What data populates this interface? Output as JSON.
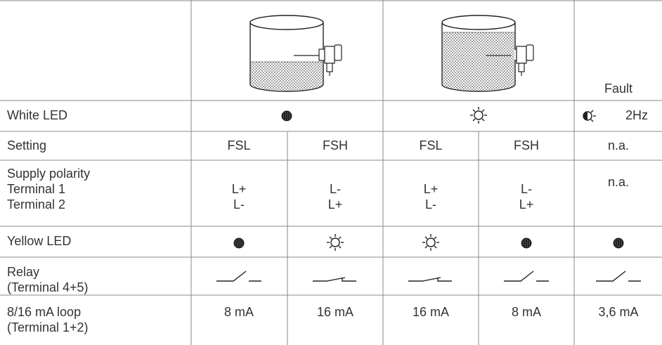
{
  "table": {
    "header": {
      "fault": "Fault"
    },
    "white_led": {
      "label": "White LED",
      "fault": "2Hz"
    },
    "setting": {
      "label": "Setting",
      "cells": [
        "FSL",
        "FSH",
        "FSL",
        "FSH",
        "n.a."
      ]
    },
    "supply": {
      "label": [
        "Supply polarity",
        "Terminal 1",
        "Terminal 2"
      ],
      "cells": [
        [
          "L+",
          "L-"
        ],
        [
          "L-",
          "L+"
        ],
        [
          "L+",
          "L-"
        ],
        [
          "L-",
          "L+"
        ]
      ],
      "fault": "n.a."
    },
    "yellow_led": {
      "label": "Yellow LED"
    },
    "relay": {
      "label": [
        "Relay",
        "(Terminal 4+5)"
      ]
    },
    "loop": {
      "label": [
        "8/16 mA loop",
        "(Terminal 1+2)"
      ],
      "cells": [
        "8 mA",
        "16 mA",
        "16 mA",
        "8 mA",
        "3,6 mA"
      ]
    }
  }
}
